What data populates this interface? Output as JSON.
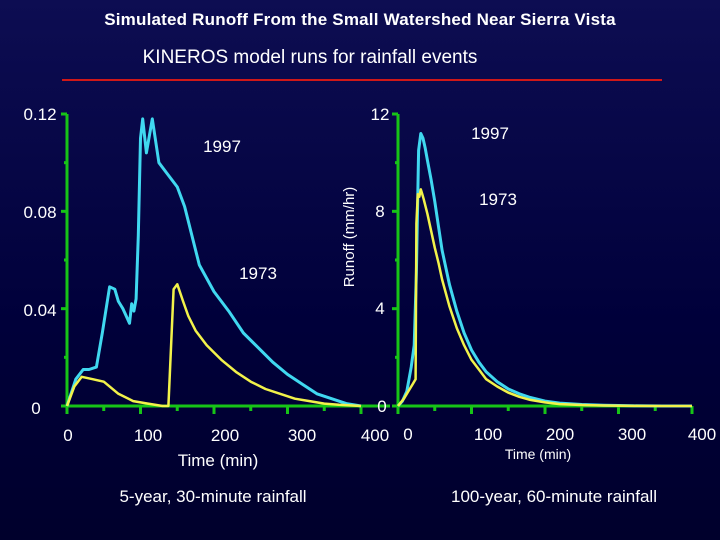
{
  "title": "Simulated Runoff From the Small Watershed Near Sierra Vista",
  "subtitle": "KINEROS model runs for rainfall events",
  "colors": {
    "axis": "#17c417",
    "line1997": "#40d8f0",
    "line1973": "#f2f24a",
    "text": "#ffffff",
    "rule": "#d01818"
  },
  "chart_data": [
    {
      "type": "line",
      "title": "5-year, 30-minute rainfall",
      "xlabel": "Time (min)",
      "ylabel": "",
      "xlim": [
        0,
        400
      ],
      "ylim": [
        0,
        0.12
      ],
      "x_ticks": [
        "0",
        "100",
        "200",
        "300",
        "400"
      ],
      "y_ticks": [
        "0",
        "0.04",
        "0.08",
        "0.12"
      ],
      "series": [
        {
          "name": "1997",
          "x": [
            0,
            12,
            22,
            30,
            40,
            48,
            58,
            65,
            70,
            76,
            82,
            85,
            88,
            91,
            94,
            97,
            100,
            103,
            108,
            116,
            125,
            135,
            150,
            160,
            180,
            200,
            220,
            240,
            260,
            280,
            300,
            320,
            340,
            360,
            380,
            400
          ],
          "y": [
            0,
            0.011,
            0.015,
            0.015,
            0.016,
            0.03,
            0.049,
            0.048,
            0.043,
            0.04,
            0.036,
            0.034,
            0.042,
            0.039,
            0.044,
            0.07,
            0.11,
            0.118,
            0.104,
            0.118,
            0.1,
            0.096,
            0.09,
            0.082,
            0.058,
            0.047,
            0.039,
            0.03,
            0.024,
            0.018,
            0.013,
            0.009,
            0.005,
            0.003,
            0.001,
            0
          ]
        },
        {
          "name": "1973",
          "x": [
            0,
            10,
            20,
            35,
            50,
            70,
            90,
            110,
            130,
            138,
            145,
            150,
            158,
            165,
            175,
            190,
            210,
            230,
            250,
            270,
            290,
            310,
            330,
            350,
            370,
            400
          ],
          "y": [
            0,
            0.008,
            0.012,
            0.011,
            0.01,
            0.005,
            0.002,
            0.001,
            0,
            0,
            0.048,
            0.05,
            0.043,
            0.037,
            0.031,
            0.025,
            0.019,
            0.014,
            0.01,
            0.007,
            0.005,
            0.003,
            0.002,
            0.001,
            0.0005,
            0
          ]
        }
      ],
      "annotations": [
        {
          "text": "1997",
          "x": 185,
          "y": 0.11
        },
        {
          "text": "1973",
          "x": 210,
          "y": 0.057
        }
      ]
    },
    {
      "type": "line",
      "title": "100-year, 60-minute rainfall",
      "xlabel": "Time (min)",
      "ylabel": "Runoff (mm/hr)",
      "xlim": [
        0,
        400
      ],
      "ylim": [
        0,
        12
      ],
      "x_ticks": [
        "0",
        "100",
        "200",
        "300",
        "400"
      ],
      "y_ticks": [
        "0",
        "4",
        "8",
        "12"
      ],
      "series": [
        {
          "name": "1997",
          "x": [
            0,
            6,
            12,
            18,
            22,
            25,
            28,
            31,
            34,
            37,
            40,
            45,
            50,
            55,
            60,
            70,
            80,
            90,
            100,
            110,
            120,
            135,
            150,
            165,
            180,
            200,
            220,
            250,
            280,
            320,
            360,
            400
          ],
          "y": [
            0,
            0.2,
            0.6,
            1.6,
            2.5,
            5.5,
            10.5,
            11.2,
            11.0,
            10.6,
            10.1,
            9.3,
            8.4,
            7.4,
            6.4,
            5.0,
            3.9,
            3.0,
            2.3,
            1.8,
            1.4,
            1.0,
            0.7,
            0.5,
            0.35,
            0.2,
            0.12,
            0.06,
            0.03,
            0.01,
            0,
            0
          ]
        },
        {
          "name": "1973",
          "x": [
            0,
            8,
            14,
            20,
            24,
            25,
            27,
            29,
            31,
            33,
            35,
            40,
            45,
            50,
            55,
            60,
            70,
            80,
            90,
            100,
            110,
            120,
            135,
            150,
            165,
            180,
            200,
            220,
            250,
            280,
            320,
            360,
            400
          ],
          "y": [
            0,
            0.3,
            0.6,
            0.9,
            1.1,
            7.5,
            8.7,
            8.6,
            8.9,
            8.7,
            8.5,
            7.9,
            7.2,
            6.5,
            5.9,
            5.2,
            4.1,
            3.2,
            2.5,
            1.9,
            1.5,
            1.1,
            0.8,
            0.55,
            0.38,
            0.25,
            0.15,
            0.08,
            0.04,
            0.02,
            0.005,
            0,
            0
          ]
        }
      ],
      "annotations": [
        {
          "text": "1997",
          "x": 40,
          "y": 11.3
        },
        {
          "text": "1973",
          "x": 50,
          "y": 8.5
        }
      ]
    }
  ]
}
